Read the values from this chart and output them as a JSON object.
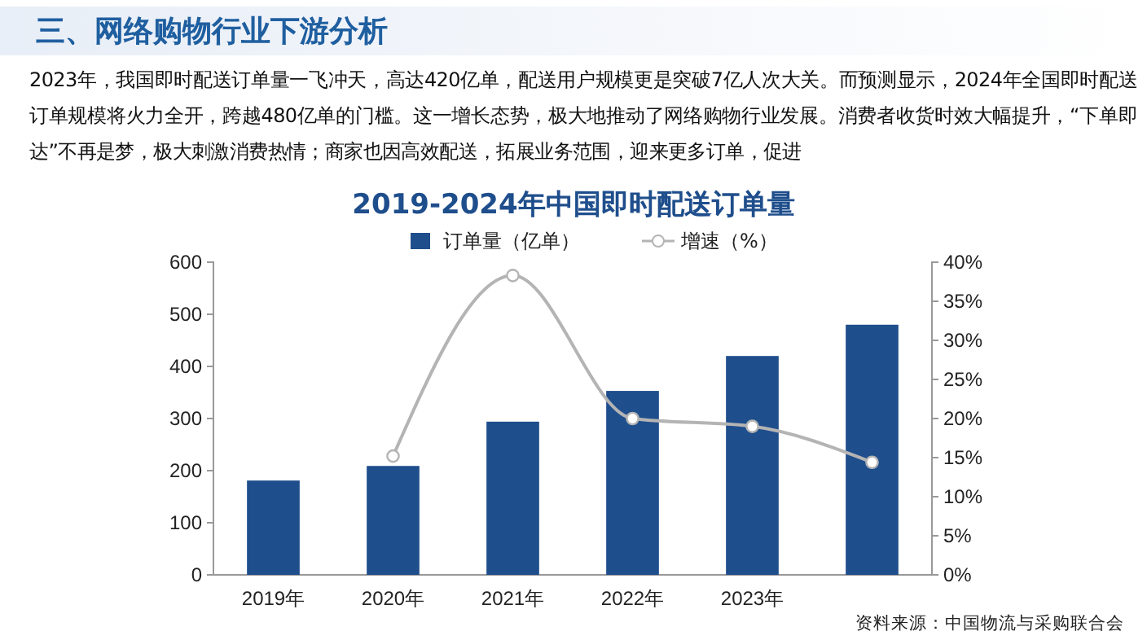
{
  "chart_data": {
    "type": "bar",
    "title": "2019-2024年中国即时配送订单量",
    "subtitle": "三、网络购物行业下游分析",
    "annotations": [
      "2023年，我国即时配送订单量一飞冲天，高达420亿单，配送用户规模更是突破7亿人次大关。而预测显示，2024年全国即时配送订单规模将火力全开，跨越480亿单的门槛。这一增长态势，极大地推动了网络购物行业发展。消费者收货时效大幅提升，“下单即达”不再是梦，极大刺激消费热情；商家也因高效配送，拓展业务范围，迎来更多订单，促进",
      "资料来源：中国物流与采购联合会"
    ],
    "categories": [
      "2019年",
      "2020年",
      "2021年",
      "2022年",
      "2023年",
      null
    ],
    "series": [
      {
        "name": "订单量（亿单）",
        "color": "#1f4e8c",
        "values": [
          181,
          209,
          294,
          353,
          420,
          480
        ]
      },
      {
        "name": "增速（%）",
        "type": "line",
        "axis": "y2",
        "color": "#b4b4b4",
        "marker": "circle",
        "values": [
          null,
          15.2,
          38.3,
          20.0,
          19.0,
          14.4
        ]
      }
    ],
    "ylim": [
      0,
      600
    ],
    "yticks": [
      0,
      100,
      200,
      300,
      400,
      500,
      600
    ],
    "y2lim": [
      0,
      40
    ],
    "y2ticks": [
      {
        "value": 0,
        "label": "0%"
      },
      {
        "value": 5,
        "label": "5%"
      },
      {
        "value": 10,
        "label": "10%"
      },
      {
        "value": 15,
        "label": "15%"
      },
      {
        "value": 20,
        "label": "20%"
      },
      {
        "value": 25,
        "label": "25%"
      },
      {
        "value": 30,
        "label": "30%"
      },
      {
        "value": 35,
        "label": "35%"
      },
      {
        "value": 40,
        "label": "40%"
      }
    ],
    "legend": "top",
    "grid": false
  }
}
